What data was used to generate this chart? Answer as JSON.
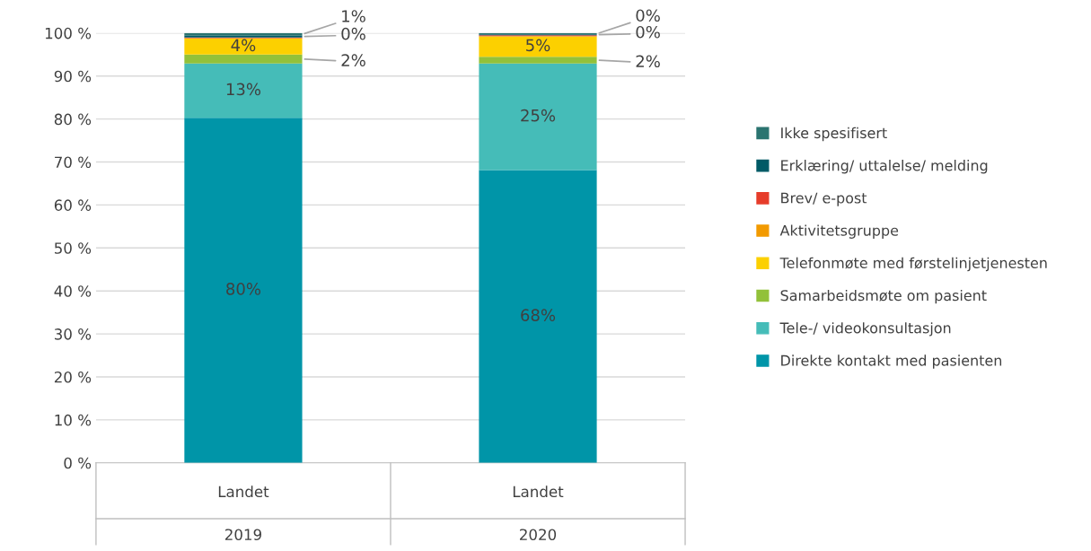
{
  "chart_data": {
    "type": "bar",
    "stacked": true,
    "categories": [
      "Landet\n2019",
      "Landet\n2020"
    ],
    "ylim": [
      0,
      100
    ],
    "yticks": [
      {
        "value": 0,
        "label": "0 %"
      },
      {
        "value": 10,
        "label": "10 %"
      },
      {
        "value": 20,
        "label": "20 %"
      },
      {
        "value": 30,
        "label": "30 %"
      },
      {
        "value": 40,
        "label": "40 %"
      },
      {
        "value": 50,
        "label": "50 %"
      },
      {
        "value": 60,
        "label": "60 %"
      },
      {
        "value": 70,
        "label": "70 %"
      },
      {
        "value": 80,
        "label": "80 %"
      },
      {
        "value": 90,
        "label": "90 %"
      },
      {
        "value": 100,
        "label": "100 %"
      }
    ],
    "grid": "y",
    "legend": "right",
    "series": [
      {
        "name": "Direkte kontakt med pasienten",
        "color": "#0095a8",
        "values": [
          80.3,
          68.1
        ],
        "value_labels": [
          "80%",
          "68%"
        ]
      },
      {
        "name": "Tele-/ videokonsultasjon",
        "color": "#45bcb8",
        "values": [
          12.6,
          24.8
        ],
        "value_labels": [
          "13%",
          "25%"
        ]
      },
      {
        "name": "Samarbeidsmøte om pasient",
        "color": "#92c13a",
        "values": [
          2.1,
          1.6
        ],
        "value_labels": [
          "2%",
          "2%"
        ]
      },
      {
        "name": "Telefonmøte med førstelinjetjenesten",
        "color": "#fcd000",
        "values": [
          3.7,
          4.7
        ],
        "value_labels": [
          "4%",
          "5%"
        ]
      },
      {
        "name": "Aktivitetsgruppe",
        "color": "#f29a00",
        "values": [
          0.1,
          0.1
        ],
        "value_labels": [
          null,
          null
        ]
      },
      {
        "name": "Brev/ e-post",
        "color": "#e63c2a",
        "values": [
          0.2,
          0.2
        ],
        "value_labels": [
          null,
          null
        ]
      },
      {
        "name": "Erklæring/ uttalelse/ melding",
        "color": "#005a66",
        "values": [
          0.4,
          0.2
        ],
        "value_labels": [
          "0%",
          "0%"
        ]
      },
      {
        "name": "Ikke spesifisert",
        "color": "#2b7470",
        "values": [
          0.6,
          0.3
        ],
        "value_labels": [
          "1%",
          "0%"
        ]
      }
    ]
  }
}
